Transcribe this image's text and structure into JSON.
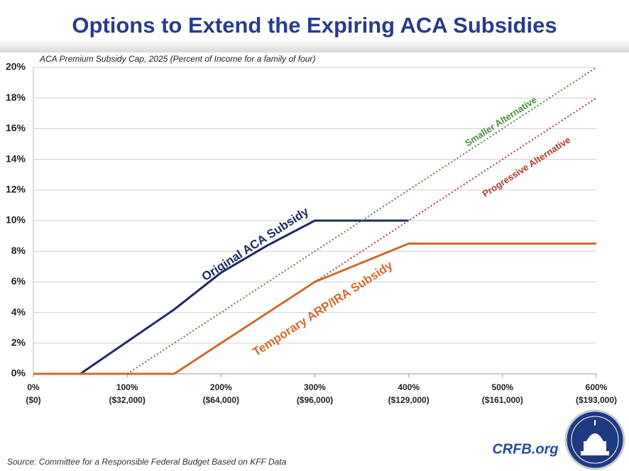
{
  "chart_data": {
    "type": "line",
    "title": "Options to Extend the Expiring ACA Subsidies",
    "subtitle": "ACA Premium Subsidy Cap, 2025 (Percent of Income for a family of four)",
    "source": "Source: Committee for a Responsible Federal Budget Based on KFF Data",
    "brand": "CRFB.org",
    "xlim": [
      0,
      600
    ],
    "xticks": [
      {
        "value": 0,
        "label": "0%"
      },
      {
        "value": 100,
        "label": "100%"
      },
      {
        "value": 200,
        "label": "200%"
      },
      {
        "value": 300,
        "label": "300%"
      },
      {
        "value": 400,
        "label": "400%"
      },
      {
        "value": 500,
        "label": "500%"
      },
      {
        "value": 600,
        "label": "600%"
      }
    ],
    "xtick_sublabels": [
      "($0)",
      "($32,000)",
      "($64,000)",
      "($96,000)",
      "($129,000)",
      "($161,000)",
      "($193,000)"
    ],
    "ylim": [
      0,
      20
    ],
    "yticks": [
      {
        "value": 0,
        "label": "0%"
      },
      {
        "value": 2,
        "label": "2%"
      },
      {
        "value": 4,
        "label": "4%"
      },
      {
        "value": 6,
        "label": "6%"
      },
      {
        "value": 8,
        "label": "8%"
      },
      {
        "value": 10,
        "label": "10%"
      },
      {
        "value": 12,
        "label": "12%"
      },
      {
        "value": 14,
        "label": "14%"
      },
      {
        "value": 16,
        "label": "16%"
      },
      {
        "value": 18,
        "label": "18%"
      },
      {
        "value": 20,
        "label": "20%"
      }
    ],
    "grid": true,
    "series": [
      {
        "name": "Original ACA Subsidy",
        "color": "#1f2a5e",
        "style": "solid",
        "x": [
          0,
          50,
          150,
          200,
          250,
          300,
          400
        ],
        "values": [
          0,
          0,
          4.2,
          6.6,
          8.4,
          10,
          10
        ]
      },
      {
        "name": "Temporary ARP/IRA Subsidy",
        "color": "#d0692f",
        "style": "solid",
        "x": [
          0,
          150,
          200,
          250,
          300,
          400,
          600
        ],
        "values": [
          0,
          0,
          2,
          4,
          6,
          8.5,
          8.5
        ]
      },
      {
        "name": "Smaller Alternative",
        "color": "#4b8b3b",
        "style": "dotted",
        "x": [
          100,
          600
        ],
        "values": [
          0,
          20
        ]
      },
      {
        "name": "Progressive Alternative",
        "color": "#b2382c",
        "style": "dotted",
        "x": [
          300,
          600
        ],
        "values": [
          6,
          18
        ]
      }
    ]
  }
}
